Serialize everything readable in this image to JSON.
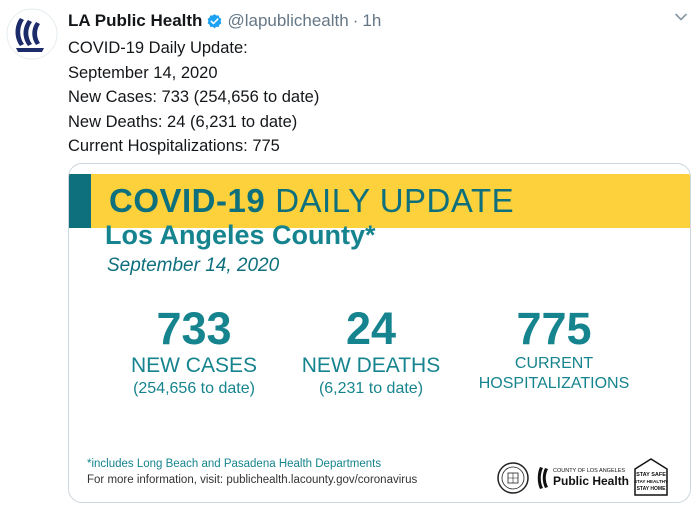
{
  "tweet": {
    "author_name": "LA Public Health",
    "handle": "@lapublichealth",
    "separator": "·",
    "time": "1h",
    "more_icon": "more-dots-icon",
    "lines": [
      "COVID-19 Daily Update:",
      "September 14, 2020",
      "New Cases: 733 (254,656 to date)",
      "New Deaths: 24 (6,231 to date)",
      "Current Hospitalizations: 775"
    ]
  },
  "card": {
    "title_bold": "COVID-19",
    "title_light": "DAILY UPDATE",
    "county": "Los Angeles County*",
    "date": "September 14, 2020",
    "stats": {
      "cases": {
        "value": "733",
        "label": "NEW CASES",
        "sub": "(254,656 to date)"
      },
      "deaths": {
        "value": "24",
        "label": "NEW DEATHS",
        "sub": "(6,231 to date)"
      },
      "hosp": {
        "value": "775",
        "label_line1": "CURRENT",
        "label_line2": "HOSPITALIZATIONS"
      }
    },
    "footnote": "*includes Long Beach and Pasadena Health Departments",
    "more_info": "For more information, visit: publichealth.lacounty.gov/coronavirus",
    "logo": {
      "small": "COUNTY OF LOS ANGELES",
      "big": "Public Health"
    },
    "badge": {
      "line1": "STAY SAFE",
      "line2": "STAY HEALTHY",
      "line3": "STAY HOME"
    }
  },
  "colors": {
    "teal": "#16848e",
    "teal_dark": "#0e6f7d",
    "yellow": "#fcd13b",
    "verified_blue": "#1da1f2",
    "text": "#14171a",
    "muted": "#657786"
  }
}
